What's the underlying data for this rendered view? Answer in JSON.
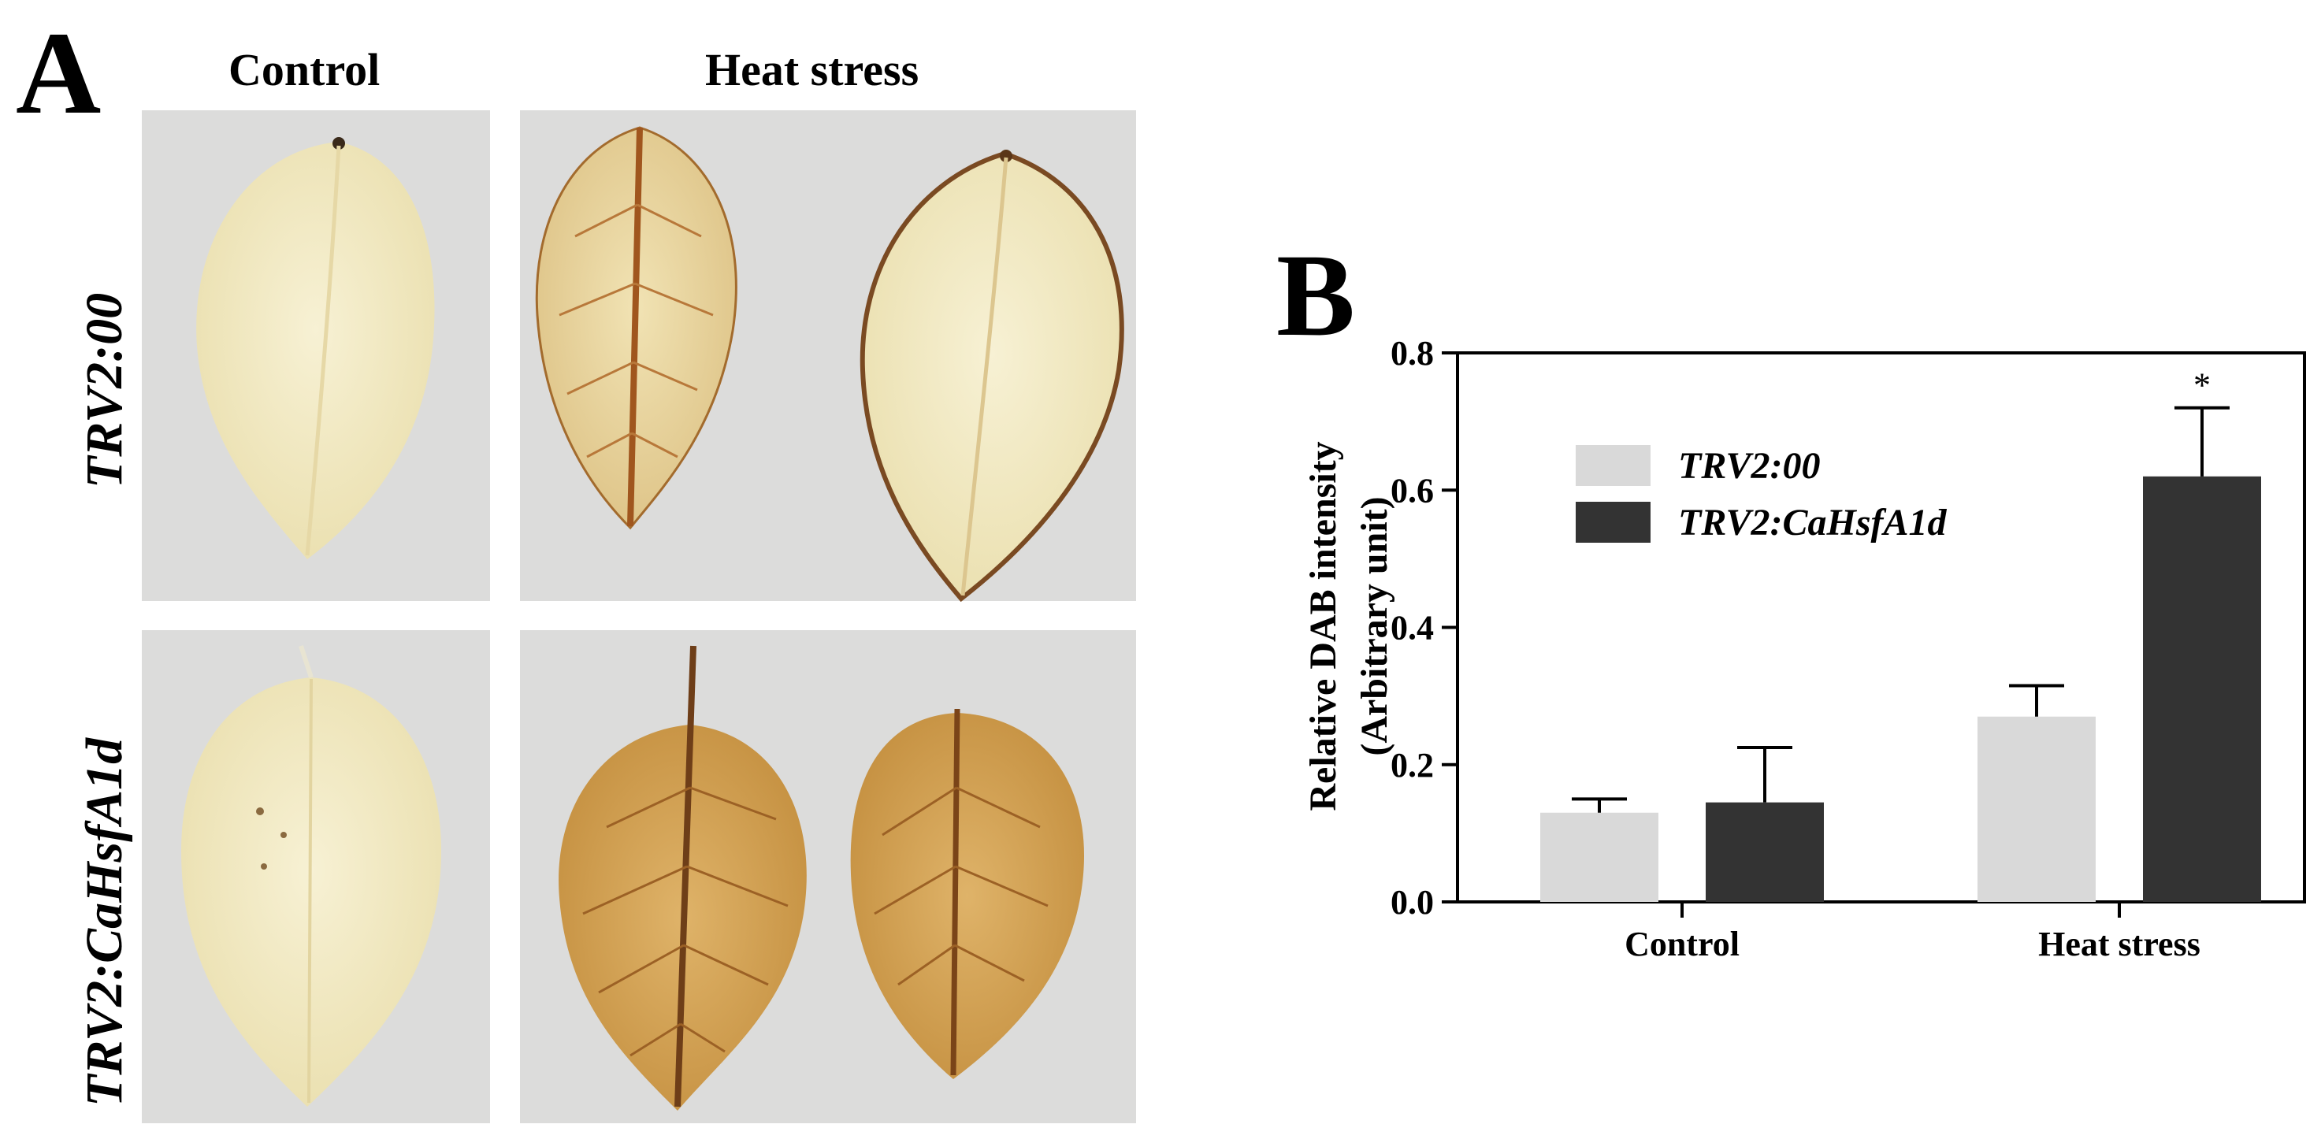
{
  "panel_a": {
    "letter": "A",
    "columns": [
      "Control",
      "Heat stress"
    ],
    "rows": [
      "TRV2:00",
      "TRV2:CaHsfA1d"
    ]
  },
  "panel_b": {
    "letter": "B"
  },
  "chart_data": {
    "type": "bar",
    "categories": [
      "Control",
      "Heat stress"
    ],
    "series": [
      {
        "name": "TRV2:00",
        "values": [
          0.13,
          0.27
        ],
        "errors": [
          0.02,
          0.045
        ],
        "color": "#d9d9d9"
      },
      {
        "name": "TRV2:CaHsfA1d",
        "values": [
          0.145,
          0.62
        ],
        "errors": [
          0.08,
          0.1
        ],
        "color": "#333333"
      }
    ],
    "significance": [
      {
        "category": "Heat stress",
        "series": "TRV2:CaHsfA1d",
        "mark": "*"
      }
    ],
    "ylabel_line1": "Relative DAB intensity",
    "ylabel_line2": "(Arbitrary unit)",
    "yticks": [
      "0.0",
      "0.2",
      "0.4",
      "0.6",
      "0.8"
    ],
    "ylim": [
      0,
      0.8
    ],
    "legend_placement": "top-left"
  }
}
